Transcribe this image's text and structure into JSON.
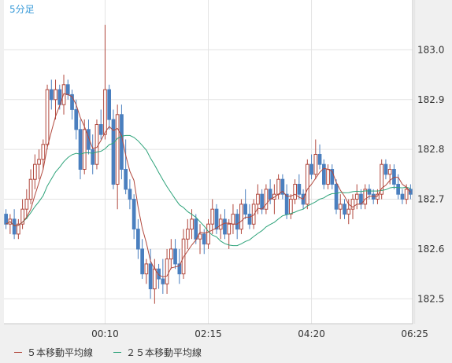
{
  "chart_data": {
    "type": "candlestick",
    "title": "5分足",
    "ylim": [
      182.45,
      183.1
    ],
    "yticks": [
      182.5,
      182.6,
      182.7,
      182.8,
      182.9,
      183.0
    ],
    "ytick_labels": [
      "182.5",
      "182.6",
      "182.7",
      "182.8",
      "182.9",
      "183.0"
    ],
    "xticks": [
      {
        "index": 24,
        "label": "00:10"
      },
      {
        "index": 49,
        "label": "02:15"
      },
      {
        "index": 74,
        "label": "04:20"
      },
      {
        "index": 99,
        "label": "06:25"
      }
    ],
    "colors": {
      "up": "#b1483d",
      "down": "#4a7fbf",
      "ma5": "#b1483d",
      "ma25": "#2ea37a",
      "grid": "#e3e3e3",
      "title": "#3a9bd9"
    },
    "candles": [
      [
        182.67,
        182.68,
        182.64,
        182.65
      ],
      [
        182.65,
        182.67,
        182.63,
        182.66
      ],
      [
        182.66,
        182.68,
        182.62,
        182.63
      ],
      [
        182.63,
        182.66,
        182.62,
        182.65
      ],
      [
        182.65,
        182.7,
        182.64,
        182.68
      ],
      [
        182.68,
        182.72,
        182.66,
        182.7
      ],
      [
        182.7,
        182.76,
        182.69,
        182.74
      ],
      [
        182.74,
        182.79,
        182.72,
        182.77
      ],
      [
        182.77,
        182.8,
        182.74,
        182.78
      ],
      [
        182.78,
        182.82,
        182.76,
        182.81
      ],
      [
        182.81,
        182.93,
        182.8,
        182.92
      ],
      [
        182.92,
        182.94,
        182.88,
        182.9
      ],
      [
        182.9,
        182.94,
        182.86,
        182.92
      ],
      [
        182.92,
        182.93,
        182.88,
        182.89
      ],
      [
        182.89,
        182.95,
        182.87,
        182.93
      ],
      [
        182.93,
        182.94,
        182.9,
        182.91
      ],
      [
        182.91,
        182.92,
        182.86,
        182.88
      ],
      [
        182.88,
        182.9,
        182.82,
        182.84
      ],
      [
        182.84,
        182.86,
        182.74,
        182.76
      ],
      [
        182.76,
        182.86,
        182.75,
        182.84
      ],
      [
        182.84,
        182.86,
        182.79,
        182.8
      ],
      [
        182.8,
        182.83,
        182.75,
        182.77
      ],
      [
        182.77,
        182.86,
        182.76,
        182.85
      ],
      [
        182.85,
        182.88,
        182.82,
        182.83
      ],
      [
        182.83,
        183.05,
        182.82,
        182.92
      ],
      [
        182.92,
        182.93,
        182.84,
        182.86
      ],
      [
        182.86,
        182.88,
        182.72,
        182.73
      ],
      [
        182.73,
        182.89,
        182.68,
        182.87
      ],
      [
        182.87,
        182.89,
        182.74,
        182.76
      ],
      [
        182.76,
        182.82,
        182.71,
        182.72
      ],
      [
        182.72,
        182.74,
        182.68,
        182.7
      ],
      [
        182.7,
        182.71,
        182.62,
        182.64
      ],
      [
        182.64,
        182.66,
        182.58,
        182.6
      ],
      [
        182.6,
        182.62,
        182.54,
        182.55
      ],
      [
        182.55,
        182.58,
        182.53,
        182.57
      ],
      [
        182.57,
        182.6,
        182.5,
        182.52
      ],
      [
        182.52,
        182.58,
        182.49,
        182.56
      ],
      [
        182.56,
        182.57,
        182.52,
        182.54
      ],
      [
        182.54,
        182.58,
        182.51,
        182.53
      ],
      [
        182.53,
        182.6,
        182.51,
        182.58
      ],
      [
        182.58,
        182.62,
        182.56,
        182.6
      ],
      [
        182.6,
        182.62,
        182.56,
        182.57
      ],
      [
        182.57,
        182.6,
        182.53,
        182.55
      ],
      [
        182.55,
        182.64,
        182.54,
        182.62
      ],
      [
        182.62,
        182.66,
        182.6,
        182.64
      ],
      [
        182.64,
        182.68,
        182.62,
        182.66
      ],
      [
        182.66,
        182.67,
        182.61,
        182.62
      ],
      [
        182.62,
        182.65,
        182.59,
        182.63
      ],
      [
        182.63,
        182.64,
        182.59,
        182.61
      ],
      [
        182.61,
        182.66,
        182.6,
        182.65
      ],
      [
        182.65,
        182.7,
        182.63,
        182.68
      ],
      [
        182.68,
        182.69,
        182.63,
        182.64
      ],
      [
        182.64,
        182.67,
        182.62,
        182.66
      ],
      [
        182.66,
        182.68,
        182.62,
        182.63
      ],
      [
        182.63,
        182.66,
        182.6,
        182.65
      ],
      [
        182.65,
        182.69,
        182.63,
        182.67
      ],
      [
        182.67,
        182.68,
        182.62,
        182.64
      ],
      [
        182.64,
        182.7,
        182.63,
        182.69
      ],
      [
        182.69,
        182.72,
        182.66,
        182.67
      ],
      [
        182.67,
        182.69,
        182.64,
        182.65
      ],
      [
        182.65,
        182.7,
        182.64,
        182.69
      ],
      [
        182.69,
        182.73,
        182.67,
        182.71
      ],
      [
        182.71,
        182.72,
        182.67,
        182.68
      ],
      [
        182.68,
        182.73,
        182.67,
        182.72
      ],
      [
        182.72,
        182.74,
        182.69,
        182.7
      ],
      [
        182.7,
        182.73,
        182.67,
        182.71
      ],
      [
        182.71,
        182.75,
        182.7,
        182.74
      ],
      [
        182.74,
        182.75,
        182.7,
        182.71
      ],
      [
        182.71,
        182.73,
        182.66,
        182.67
      ],
      [
        182.67,
        182.71,
        182.66,
        182.7
      ],
      [
        182.7,
        182.74,
        182.69,
        182.73
      ],
      [
        182.73,
        182.75,
        182.7,
        182.71
      ],
      [
        182.71,
        182.72,
        182.68,
        182.69
      ],
      [
        182.69,
        182.78,
        182.68,
        182.77
      ],
      [
        182.77,
        182.79,
        182.74,
        182.75
      ],
      [
        182.75,
        182.82,
        182.74,
        182.79
      ],
      [
        182.79,
        182.81,
        182.76,
        182.77
      ],
      [
        182.77,
        182.78,
        182.72,
        182.73
      ],
      [
        182.73,
        182.77,
        182.72,
        182.76
      ],
      [
        182.76,
        182.77,
        182.72,
        182.73
      ],
      [
        182.73,
        182.74,
        182.67,
        182.68
      ],
      [
        182.68,
        182.71,
        182.66,
        182.69
      ],
      [
        182.69,
        182.7,
        182.66,
        182.67
      ],
      [
        182.67,
        182.7,
        182.65,
        182.68
      ],
      [
        182.68,
        182.71,
        182.66,
        182.7
      ],
      [
        182.7,
        182.73,
        182.68,
        182.71
      ],
      [
        182.71,
        182.72,
        182.68,
        182.69
      ],
      [
        182.69,
        182.73,
        182.68,
        182.72
      ],
      [
        182.72,
        182.73,
        182.7,
        182.71
      ],
      [
        182.71,
        182.72,
        182.69,
        182.7
      ],
      [
        182.7,
        182.72,
        182.69,
        182.71
      ],
      [
        182.71,
        182.78,
        182.7,
        182.77
      ],
      [
        182.77,
        182.78,
        182.74,
        182.75
      ],
      [
        182.75,
        182.77,
        182.73,
        182.76
      ],
      [
        182.76,
        182.77,
        182.72,
        182.73
      ],
      [
        182.73,
        182.75,
        182.7,
        182.71
      ],
      [
        182.71,
        182.72,
        182.69,
        182.7
      ],
      [
        182.7,
        182.73,
        182.69,
        182.72
      ],
      [
        182.72,
        182.73,
        182.7,
        182.71
      ]
    ]
  },
  "legend": {
    "ma5_label": "５本移動平均線",
    "ma25_label": "２５本移動平均線"
  }
}
